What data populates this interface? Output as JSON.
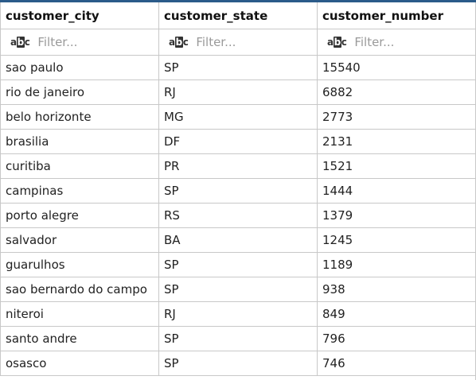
{
  "table": {
    "columns": [
      "customer_city",
      "customer_state",
      "customer_number"
    ],
    "filter_placeholder": "Filter...",
    "rows": [
      [
        "sao paulo",
        "SP",
        "15540"
      ],
      [
        "rio de janeiro",
        "RJ",
        "6882"
      ],
      [
        "belo horizonte",
        "MG",
        "2773"
      ],
      [
        "brasilia",
        "DF",
        "2131"
      ],
      [
        "curitiba",
        "PR",
        "1521"
      ],
      [
        "campinas",
        "SP",
        "1444"
      ],
      [
        "porto alegre",
        "RS",
        "1379"
      ],
      [
        "salvador",
        "BA",
        "1245"
      ],
      [
        "guarulhos",
        "SP",
        "1189"
      ],
      [
        "sao bernardo do campo",
        "SP",
        "938"
      ],
      [
        "niteroi",
        "RJ",
        "849"
      ],
      [
        "santo andre",
        "SP",
        "796"
      ],
      [
        "osasco",
        "SP",
        "746"
      ]
    ]
  },
  "icons": {
    "filter_icon": "abc-text-filter-icon"
  },
  "colors": {
    "header_border": "#2b5b8a",
    "grid_line": "#c8c8c8",
    "placeholder": "#9a9a9a"
  }
}
